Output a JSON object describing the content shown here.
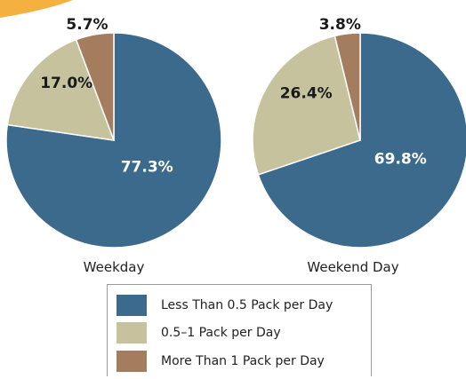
{
  "chart_data": [
    {
      "type": "pie",
      "caption": "Weekday",
      "slices": [
        {
          "category": "Less Than 0.5 Pack per Day",
          "value": 77.3,
          "label": "77.3%"
        },
        {
          "category": "0.5–1 Pack per Day",
          "value": 17.0,
          "label": "17.0%"
        },
        {
          "category": "More Than 1 Pack per Day",
          "value": 5.7,
          "label": "5.7%"
        }
      ]
    },
    {
      "type": "pie",
      "caption": "Weekend Day",
      "slices": [
        {
          "category": "Less Than 0.5 Pack per Day",
          "value": 69.8,
          "label": "69.8%"
        },
        {
          "category": "0.5–1 Pack per Day",
          "value": 26.4,
          "label": "26.4%"
        },
        {
          "category": "More Than 1 Pack per Day",
          "value": 3.8,
          "label": "3.8%"
        }
      ]
    }
  ],
  "legend": {
    "placement": "bottom-center",
    "items": [
      {
        "label": "Less Than 0.5 Pack per Day",
        "color": "#3b6a8c"
      },
      {
        "label": "0.5–1 Pack per Day",
        "color": "#c6c29d"
      },
      {
        "label": "More Than 1 Pack per Day",
        "color": "#a47d5f"
      }
    ]
  }
}
